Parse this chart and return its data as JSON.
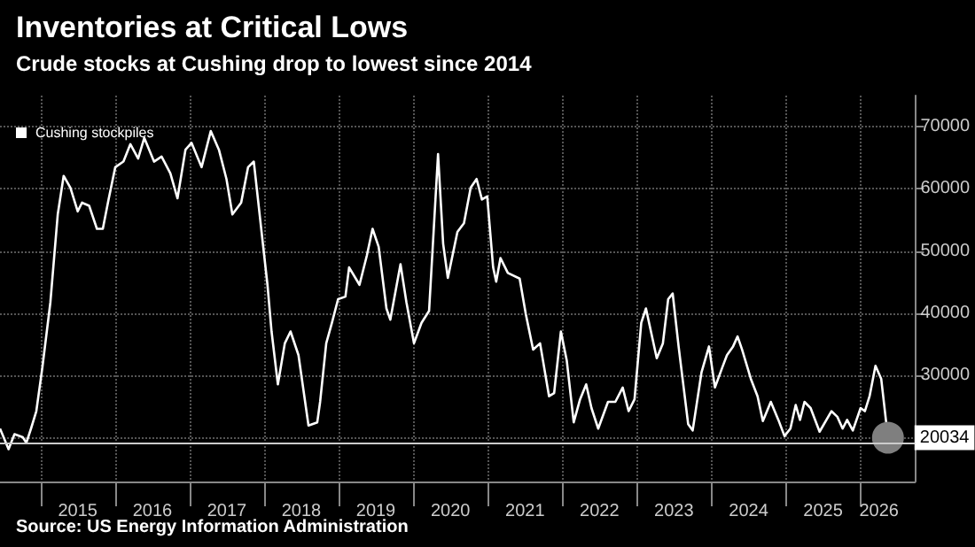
{
  "chart_data": {
    "type": "line",
    "title": "Inventories at Critical Lows",
    "subtitle": "Crude stocks at Cushing drop to lowest since 2014",
    "annotations": [
      "Source: US Energy Information Administration"
    ],
    "legend": "top left",
    "grid": true,
    "marker": "none",
    "line_style": "solid",
    "xlim": [
      "2014-06-15",
      "2026-09-25"
    ],
    "xticks": [
      {
        "value": "2015-01-01",
        "label": null
      },
      {
        "value": "2016-01-01",
        "label": null
      },
      {
        "value": "2017-01-01",
        "label": null
      },
      {
        "value": "2018-01-01",
        "label": null
      },
      {
        "value": "2019-01-01",
        "label": null
      },
      {
        "value": "2020-01-01",
        "label": null
      },
      {
        "value": "2021-01-01",
        "label": null
      },
      {
        "value": "2022-01-01",
        "label": null
      },
      {
        "value": "2023-01-01",
        "label": null
      },
      {
        "value": "2024-01-01",
        "label": null
      },
      {
        "value": "2025-01-01",
        "label": null
      },
      {
        "value": "2026-01-01",
        "label": null
      },
      {
        "value": "2015-07-01",
        "label": "2015"
      },
      {
        "value": "2016-07-01",
        "label": "2016"
      },
      {
        "value": "2017-07-01",
        "label": "2017"
      },
      {
        "value": "2018-07-01",
        "label": "2018"
      },
      {
        "value": "2019-07-01",
        "label": "2019"
      },
      {
        "value": "2020-07-01",
        "label": "2020"
      },
      {
        "value": "2021-07-01",
        "label": "2021"
      },
      {
        "value": "2022-07-01",
        "label": "2022"
      },
      {
        "value": "2023-07-01",
        "label": "2023"
      },
      {
        "value": "2024-07-01",
        "label": "2024"
      },
      {
        "value": "2025-07-01",
        "label": "2025"
      },
      {
        "value": "2026-04-01",
        "label": "2026"
      }
    ],
    "ylim": [
      13000,
      75000
    ],
    "yticks": [
      {
        "value": 20000,
        "label": null
      },
      30000,
      40000,
      50000,
      60000,
      70000
    ],
    "ref_lines": [
      {
        "axis": "y",
        "value": 19300,
        "label": null,
        "color": "#cccccc"
      }
    ],
    "series": [
      {
        "name": "Cushing stockpiles",
        "color": "#ffffff",
        "x": [
          "2014-06-15",
          "2014-07-27",
          "2014-08-25",
          "2014-10-05",
          "2014-10-22",
          "2014-11-14",
          "2014-12-10",
          "2015-01-09",
          "2015-02-17",
          "2015-03-25",
          "2015-04-23",
          "2015-05-26",
          "2015-07-01",
          "2015-07-22",
          "2015-08-26",
          "2015-10-03",
          "2015-11-01",
          "2015-11-29",
          "2016-01-01",
          "2016-02-10",
          "2016-03-15",
          "2016-04-22",
          "2016-05-22",
          "2016-07-09",
          "2016-08-15",
          "2016-09-27",
          "2016-11-01",
          "2016-12-10",
          "2017-01-09",
          "2017-02-27",
          "2017-04-13",
          "2017-05-23",
          "2017-06-29",
          "2017-07-28",
          "2017-09-09",
          "2017-10-13",
          "2017-11-10",
          "2017-12-18",
          "2018-01-16",
          "2018-02-05",
          "2018-03-08",
          "2018-04-11",
          "2018-05-09",
          "2018-06-17",
          "2018-08-05",
          "2018-09-17",
          "2018-10-01",
          "2018-10-31",
          "2018-11-28",
          "2018-12-28",
          "2019-02-02",
          "2019-02-20",
          "2019-04-12",
          "2019-05-18",
          "2019-06-15",
          "2019-07-15",
          "2019-08-22",
          "2019-09-10",
          "2019-10-30",
          "2019-11-28",
          "2020-01-04",
          "2020-02-10",
          "2020-03-18",
          "2020-05-01",
          "2020-05-26",
          "2020-06-18",
          "2020-08-04",
          "2020-09-05",
          "2020-10-08",
          "2020-11-06",
          "2020-12-02",
          "2020-12-28",
          "2021-01-26",
          "2021-02-10",
          "2021-03-03",
          "2021-04-08",
          "2021-06-05",
          "2021-07-05",
          "2021-08-10",
          "2021-09-13",
          "2021-10-27",
          "2021-11-21",
          "2021-12-24",
          "2022-01-22",
          "2022-02-25",
          "2022-03-28",
          "2022-04-27",
          "2022-05-23",
          "2022-06-25",
          "2022-08-12",
          "2022-09-17",
          "2022-10-23",
          "2022-11-21",
          "2022-12-20",
          "2023-01-22",
          "2023-02-14",
          "2023-04-08",
          "2023-05-08",
          "2023-06-03",
          "2023-06-25",
          "2023-07-24",
          "2023-09-09",
          "2023-10-01",
          "2023-11-13",
          "2023-12-20",
          "2024-01-18",
          "2024-02-24",
          "2024-03-17",
          "2024-04-16",
          "2024-05-08",
          "2024-05-30",
          "2024-07-12",
          "2024-08-14",
          "2024-09-09",
          "2024-10-18",
          "2024-11-24",
          "2024-12-24",
          "2025-01-22",
          "2025-02-17",
          "2025-03-10",
          "2025-04-01",
          "2025-05-01",
          "2025-06-14",
          "2025-08-11",
          "2025-09-09",
          "2025-10-05",
          "2025-10-27",
          "2025-11-24",
          "2026-01-01",
          "2026-01-22",
          "2026-02-14",
          "2026-03-15",
          "2026-04-12",
          "2026-05-15"
        ],
        "values": [
          21500,
          18200,
          20600,
          20100,
          19200,
          21500,
          24300,
          31400,
          41800,
          55900,
          62100,
          60200,
          56400,
          57800,
          57300,
          53600,
          53600,
          58300,
          63500,
          64400,
          67200,
          64900,
          68200,
          64400,
          65200,
          62500,
          58500,
          66300,
          67400,
          63500,
          69300,
          66300,
          61600,
          55900,
          57800,
          63500,
          64400,
          53100,
          44600,
          37100,
          28600,
          35200,
          37100,
          33300,
          22000,
          22500,
          25800,
          35200,
          38500,
          42300,
          42700,
          47400,
          44600,
          49300,
          53600,
          50700,
          40800,
          39000,
          47900,
          41800,
          35200,
          38500,
          40400,
          65600,
          51200,
          45700,
          53100,
          54500,
          60200,
          61600,
          58300,
          58800,
          47400,
          45100,
          48900,
          46500,
          45600,
          39900,
          34200,
          35200,
          26700,
          27200,
          37100,
          32400,
          22500,
          26200,
          28600,
          24800,
          21500,
          25800,
          25800,
          28100,
          24300,
          26200,
          38500,
          40800,
          32800,
          35200,
          42300,
          43200,
          34700,
          22200,
          21200,
          30500,
          34700,
          28100,
          31400,
          33300,
          34700,
          36300,
          34200,
          29500,
          26700,
          22700,
          25800,
          22900,
          20300,
          21500,
          25300,
          22900,
          25800,
          24800,
          21000,
          24300,
          23400,
          21500,
          22900,
          21200,
          24800,
          24300,
          26700,
          31600,
          29500,
          20034
        ],
        "value_labels": [
          null,
          null,
          null,
          null,
          null,
          null,
          null,
          null,
          null,
          null,
          null,
          null,
          null,
          null,
          null,
          null,
          null,
          null,
          null,
          null,
          null,
          null,
          null,
          null,
          null,
          null,
          null,
          null,
          null,
          null,
          null,
          null,
          null,
          null,
          null,
          null,
          null,
          null,
          null,
          null,
          null,
          null,
          null,
          null,
          null,
          null,
          null,
          null,
          null,
          null,
          null,
          null,
          null,
          null,
          null,
          null,
          null,
          null,
          null,
          null,
          null,
          null,
          null,
          null,
          null,
          null,
          null,
          null,
          null,
          null,
          null,
          null,
          null,
          null,
          null,
          null,
          null,
          null,
          null,
          null,
          null,
          null,
          null,
          null,
          null,
          null,
          null,
          null,
          null,
          null,
          null,
          null,
          null,
          null,
          null,
          null,
          null,
          null,
          null,
          null,
          null,
          null,
          null,
          null,
          null,
          null,
          null,
          null,
          null,
          null,
          null,
          null,
          null,
          null,
          null,
          null,
          null,
          null,
          null,
          null,
          null,
          null,
          null,
          null,
          null,
          null,
          null,
          null,
          null,
          null,
          null,
          null,
          null,
          "20034"
        ]
      }
    ]
  }
}
